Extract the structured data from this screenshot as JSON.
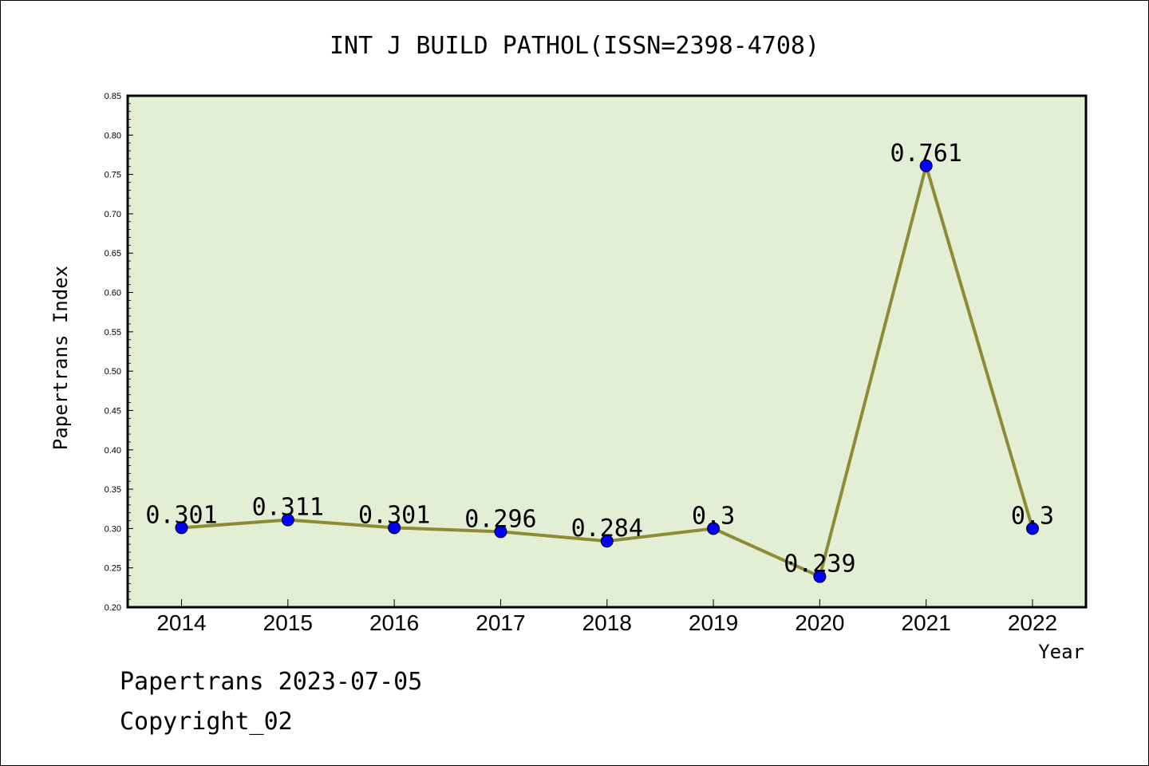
{
  "chart_data": {
    "type": "line",
    "title": "INT J BUILD PATHOL(ISSN=2398-4708)",
    "xlabel": "Year",
    "ylabel": "Papertrans Index",
    "categories": [
      "2014",
      "2015",
      "2016",
      "2017",
      "2018",
      "2019",
      "2020",
      "2021",
      "2022"
    ],
    "series": [
      {
        "values": [
          0.301,
          0.311,
          0.301,
          0.296,
          0.284,
          0.3,
          0.239,
          0.761,
          0.3
        ],
        "labels": [
          "0.301",
          "0.311",
          "0.301",
          "0.296",
          "0.284",
          "0.3",
          "0.239",
          "0.761",
          "0.3"
        ]
      }
    ],
    "ylim": [
      0.2,
      0.85
    ],
    "yticks": [
      "0.20",
      "0.25",
      "0.30",
      "0.35",
      "0.40",
      "0.45",
      "0.50",
      "0.55",
      "0.60",
      "0.65",
      "0.70",
      "0.75",
      "0.80",
      "0.85"
    ],
    "grid": false,
    "colors": {
      "plot_background": "#e2efd5",
      "line": "#8f8a35",
      "marker": "#0000ff"
    }
  },
  "footer": {
    "line1": "Papertrans 2023-07-05",
    "line2": "Copyright_02"
  }
}
